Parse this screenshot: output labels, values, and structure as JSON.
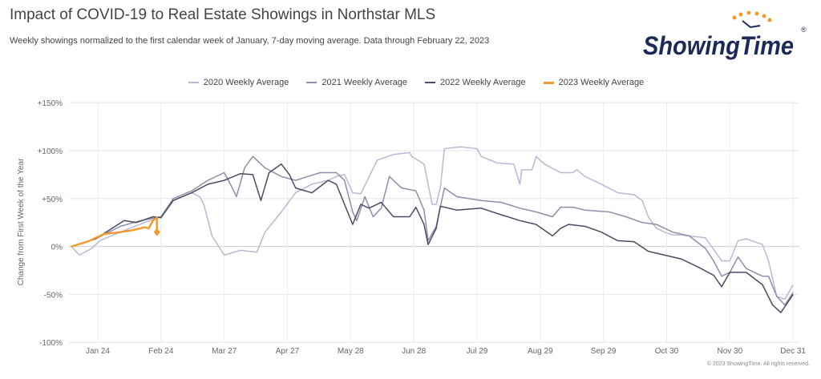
{
  "header": {
    "title": "Impact of COVID-19 to Real Estate Showings in Northstar MLS",
    "subtitle": "Weekly showings normalized to the first calendar week of January, 7-day moving average. Data through February 22, 2023",
    "logo_text": "ShowingTime",
    "copyright": "© 2023 ShowingTime. All rights reserved."
  },
  "chart_data": {
    "type": "line",
    "title": "Impact of COVID-19 to Real Estate Showings in Northstar MLS",
    "xlabel": "",
    "ylabel": "Change from First Week of the Year",
    "x_unit": "day of year",
    "xlim": [
      0,
      370
    ],
    "ylim": [
      -100,
      150
    ],
    "yticks": [
      150,
      100,
      50,
      0,
      -50,
      -100
    ],
    "ytick_labels": [
      "+150%",
      "+100%",
      "+50%",
      "0%",
      "-50%",
      "-100%"
    ],
    "xticks": [
      23,
      54,
      85,
      116,
      147,
      178,
      209,
      240,
      271,
      302,
      333,
      364
    ],
    "xtick_labels": [
      "Jan 24",
      "Feb 24",
      "Mar 27",
      "Apr 27",
      "May 28",
      "Jun 28",
      "Jul 29",
      "Aug 29",
      "Sep 29",
      "Oct 30",
      "Nov 30",
      "Dec 31"
    ],
    "grid": true,
    "legend_position": "top",
    "series": [
      {
        "name": "2020 Weekly Average",
        "color": "#b9b9d3",
        "points": [
          [
            10,
            0
          ],
          [
            14,
            -9
          ],
          [
            20,
            -2
          ],
          [
            24,
            6
          ],
          [
            34,
            15
          ],
          [
            46,
            25
          ],
          [
            54,
            31
          ],
          [
            60,
            48
          ],
          [
            69,
            56
          ],
          [
            73,
            52
          ],
          [
            75,
            44
          ],
          [
            79,
            11
          ],
          [
            85,
            -9
          ],
          [
            93,
            -4
          ],
          [
            101,
            -6
          ],
          [
            105,
            15
          ],
          [
            113,
            36
          ],
          [
            120,
            56
          ],
          [
            128,
            65
          ],
          [
            136,
            69
          ],
          [
            140,
            73
          ],
          [
            144,
            75
          ],
          [
            148,
            56
          ],
          [
            152,
            55
          ],
          [
            160,
            90
          ],
          [
            168,
            96
          ],
          [
            176,
            98
          ],
          [
            177,
            94
          ],
          [
            183,
            86
          ],
          [
            187,
            44
          ],
          [
            189,
            44
          ],
          [
            191,
            61
          ],
          [
            193,
            102
          ],
          [
            201,
            104
          ],
          [
            209,
            102
          ],
          [
            211,
            94
          ],
          [
            219,
            87
          ],
          [
            227,
            86
          ],
          [
            230,
            65
          ],
          [
            231,
            80
          ],
          [
            236,
            80
          ],
          [
            238,
            94
          ],
          [
            242,
            86
          ],
          [
            250,
            77
          ],
          [
            256,
            77
          ],
          [
            258,
            80
          ],
          [
            262,
            73
          ],
          [
            270,
            65
          ],
          [
            278,
            56
          ],
          [
            286,
            54
          ],
          [
            290,
            48
          ],
          [
            293,
            31
          ],
          [
            297,
            19
          ],
          [
            301,
            15
          ],
          [
            305,
            12
          ],
          [
            309,
            12
          ],
          [
            321,
            9
          ],
          [
            329,
            -15
          ],
          [
            333,
            -15
          ],
          [
            337,
            6
          ],
          [
            341,
            8
          ],
          [
            349,
            2
          ],
          [
            352,
            -15
          ],
          [
            356,
            -52
          ],
          [
            360,
            -55
          ],
          [
            364,
            -40
          ]
        ]
      },
      {
        "name": "2021 Weekly Average",
        "color": "#8e8ea8",
        "points": [
          [
            10,
            0
          ],
          [
            22,
            8
          ],
          [
            34,
            21
          ],
          [
            44,
            27
          ],
          [
            54,
            31
          ],
          [
            60,
            50
          ],
          [
            69,
            58
          ],
          [
            77,
            69
          ],
          [
            85,
            77
          ],
          [
            89,
            61
          ],
          [
            91,
            52
          ],
          [
            95,
            82
          ],
          [
            99,
            94
          ],
          [
            105,
            82
          ],
          [
            113,
            73
          ],
          [
            120,
            69
          ],
          [
            126,
            73
          ],
          [
            132,
            77
          ],
          [
            140,
            77
          ],
          [
            144,
            69
          ],
          [
            148,
            36
          ],
          [
            150,
            27
          ],
          [
            154,
            52
          ],
          [
            158,
            31
          ],
          [
            162,
            40
          ],
          [
            166,
            73
          ],
          [
            172,
            61
          ],
          [
            179,
            58
          ],
          [
            183,
            38
          ],
          [
            185,
            6
          ],
          [
            189,
            21
          ],
          [
            193,
            61
          ],
          [
            199,
            52
          ],
          [
            211,
            48
          ],
          [
            221,
            46
          ],
          [
            230,
            40
          ],
          [
            238,
            36
          ],
          [
            246,
            31
          ],
          [
            250,
            41
          ],
          [
            256,
            41
          ],
          [
            262,
            38
          ],
          [
            274,
            36
          ],
          [
            282,
            31
          ],
          [
            290,
            25
          ],
          [
            297,
            23
          ],
          [
            305,
            15
          ],
          [
            313,
            11
          ],
          [
            321,
            -2
          ],
          [
            325,
            -15
          ],
          [
            329,
            -31
          ],
          [
            333,
            -27
          ],
          [
            337,
            -11
          ],
          [
            341,
            -23
          ],
          [
            349,
            -31
          ],
          [
            352,
            -31
          ],
          [
            356,
            -52
          ],
          [
            360,
            -61
          ],
          [
            364,
            -48
          ]
        ]
      },
      {
        "name": "2022 Weekly Average",
        "color": "#4b4b63",
        "points": [
          [
            10,
            0
          ],
          [
            22,
            8
          ],
          [
            30,
            19
          ],
          [
            36,
            27
          ],
          [
            42,
            25
          ],
          [
            50,
            31
          ],
          [
            54,
            30
          ],
          [
            60,
            48
          ],
          [
            69,
            56
          ],
          [
            77,
            65
          ],
          [
            85,
            69
          ],
          [
            93,
            76
          ],
          [
            99,
            75
          ],
          [
            103,
            48
          ],
          [
            107,
            77
          ],
          [
            113,
            86
          ],
          [
            117,
            75
          ],
          [
            120,
            61
          ],
          [
            128,
            56
          ],
          [
            136,
            69
          ],
          [
            140,
            65
          ],
          [
            144,
            44
          ],
          [
            148,
            23
          ],
          [
            152,
            44
          ],
          [
            156,
            40
          ],
          [
            162,
            46
          ],
          [
            168,
            31
          ],
          [
            176,
            31
          ],
          [
            179,
            41
          ],
          [
            183,
            23
          ],
          [
            185,
            2
          ],
          [
            189,
            19
          ],
          [
            191,
            42
          ],
          [
            199,
            38
          ],
          [
            211,
            40
          ],
          [
            221,
            33
          ],
          [
            230,
            27
          ],
          [
            238,
            23
          ],
          [
            246,
            11
          ],
          [
            250,
            19
          ],
          [
            254,
            23
          ],
          [
            262,
            21
          ],
          [
            270,
            15
          ],
          [
            278,
            6
          ],
          [
            286,
            5
          ],
          [
            293,
            -5
          ],
          [
            301,
            -9
          ],
          [
            309,
            -13
          ],
          [
            317,
            -21
          ],
          [
            325,
            -30
          ],
          [
            329,
            -42
          ],
          [
            333,
            -27
          ],
          [
            341,
            -27
          ],
          [
            349,
            -40
          ],
          [
            354,
            -61
          ],
          [
            358,
            -69
          ],
          [
            364,
            -50
          ]
        ]
      },
      {
        "name": "2023 Weekly Average",
        "color": "#f29a2e",
        "points": [
          [
            10,
            0
          ],
          [
            18,
            5
          ],
          [
            26,
            13
          ],
          [
            34,
            15
          ],
          [
            40,
            17
          ],
          [
            44,
            19
          ],
          [
            46,
            20
          ],
          [
            48,
            19
          ],
          [
            50,
            27
          ],
          [
            52,
            30
          ],
          [
            52,
            15
          ]
        ]
      }
    ]
  }
}
